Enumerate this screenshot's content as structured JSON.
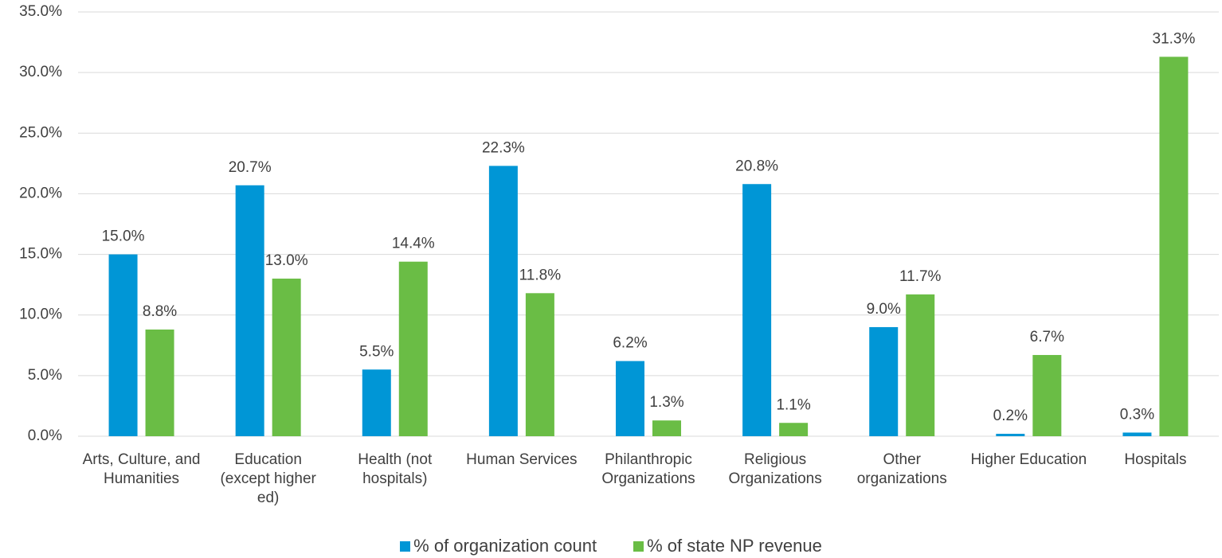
{
  "chart_data": {
    "type": "bar",
    "categories": [
      "Arts, Culture, and Humanities",
      "Education (except higher ed)",
      "Health (not hospitals)",
      "Human Services",
      "Philanthropic Organizations",
      "Religious Organizations",
      "Other organizations",
      "Higher Education",
      "Hospitals"
    ],
    "series": [
      {
        "name": "% of organization count",
        "color": "#0096d6",
        "values": [
          15.0,
          20.7,
          5.5,
          22.3,
          6.2,
          20.8,
          9.0,
          0.2,
          0.3
        ],
        "value_labels": [
          "15.0%",
          "20.7%",
          "5.5%",
          "22.3%",
          "6.2%",
          "20.8%",
          "9.0%",
          "0.2%",
          "0.3%"
        ]
      },
      {
        "name": "% of state NP revenue",
        "color": "#6abd45",
        "values": [
          8.8,
          13.0,
          14.4,
          11.8,
          1.3,
          1.1,
          11.7,
          6.7,
          31.3
        ],
        "value_labels": [
          "8.8%",
          "13.0%",
          "14.4%",
          "11.8%",
          "1.3%",
          "1.1%",
          "11.7%",
          "6.7%",
          "31.3%"
        ]
      }
    ],
    "ylim": [
      0,
      35
    ],
    "yticks": [
      {
        "value": 0,
        "label": "0.0%"
      },
      {
        "value": 5,
        "label": "5.0%"
      },
      {
        "value": 10,
        "label": "10.0%"
      },
      {
        "value": 15,
        "label": "15.0%"
      },
      {
        "value": 20,
        "label": "20.0%"
      },
      {
        "value": 25,
        "label": "25.0%"
      },
      {
        "value": 30,
        "label": "30.0%"
      },
      {
        "value": 35,
        "label": "35.0%"
      }
    ],
    "grid": true,
    "legend": "bottom"
  }
}
